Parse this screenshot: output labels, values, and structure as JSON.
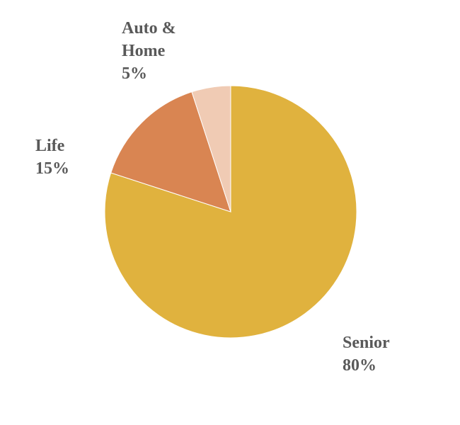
{
  "chart_data": {
    "type": "pie",
    "start": "top",
    "direction": "clockwise",
    "slices": [
      {
        "name_lines": [
          "Senior"
        ],
        "value": 80,
        "label": "80%",
        "color": "#E0B23E"
      },
      {
        "name_lines": [
          "Life"
        ],
        "value": 15,
        "label": "15%",
        "color": "#D98552"
      },
      {
        "name_lines": [
          "Auto &",
          "Home"
        ],
        "value": 5,
        "label": "5%",
        "color": "#F0CBB4"
      }
    ],
    "legend": "none",
    "data_labels": "outside"
  }
}
